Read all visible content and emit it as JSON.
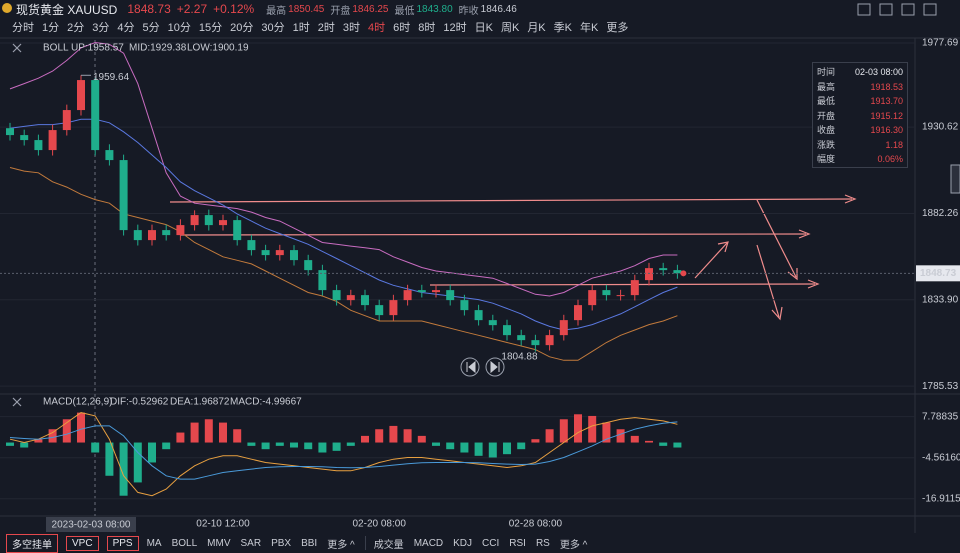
{
  "header": {
    "title": "现货黄金 XAUUSD",
    "price": "1848.73",
    "change": "+2.27",
    "change_pct": "+0.12%",
    "stats": [
      {
        "label": "最高",
        "value": "1850.45"
      },
      {
        "label": "开盘",
        "value": "1846.25"
      },
      {
        "label": "最低",
        "value": "1843.80"
      },
      {
        "label": "昨收",
        "value": "1846.46"
      }
    ]
  },
  "intervals": [
    {
      "label": "分时"
    },
    {
      "label": "1分"
    },
    {
      "label": "2分"
    },
    {
      "label": "3分"
    },
    {
      "label": "4分"
    },
    {
      "label": "5分"
    },
    {
      "label": "10分"
    },
    {
      "label": "15分"
    },
    {
      "label": "20分"
    },
    {
      "label": "30分"
    },
    {
      "label": "1时"
    },
    {
      "label": "2时"
    },
    {
      "label": "3时"
    },
    {
      "label": "4时",
      "active": true
    },
    {
      "label": "6时"
    },
    {
      "label": "8时"
    },
    {
      "label": "12时"
    },
    {
      "label": "日K"
    },
    {
      "label": "周K"
    },
    {
      "label": "月K"
    },
    {
      "label": "季K"
    },
    {
      "label": "年K"
    },
    {
      "label": "更多"
    }
  ],
  "tooltip": [
    [
      "时间",
      "02-03 08:00"
    ],
    [
      "最高",
      "1918.53"
    ],
    [
      "最低",
      "1913.70"
    ],
    [
      "开盘",
      "1915.12"
    ],
    [
      "收盘",
      "1916.30"
    ],
    [
      "涨跌",
      "1.18"
    ],
    [
      "幅度",
      "0.06%"
    ]
  ],
  "crosshair_label": "2023-02-03 08:00",
  "toolbar": {
    "buttons": [
      "多空挂单",
      "VPC",
      "PPS"
    ],
    "main_indicators": [
      "MA",
      "BOLL",
      "MMV",
      "SAR",
      "PBX",
      "BBI",
      "更多 ^"
    ],
    "sub_indicators": [
      "成交量",
      "MACD",
      "KDJ",
      "CCI",
      "RSI",
      "RS",
      "更多 ^"
    ]
  },
  "chart_data": [
    {
      "type": "candlestick",
      "title": "BOLL",
      "up_color": "#e5484d",
      "down_color": "#1fae8c",
      "categories": [
        null,
        null,
        null,
        null,
        null,
        null,
        null,
        null,
        null,
        null,
        null,
        null,
        null,
        null,
        null,
        "02-10 12:00",
        null,
        null,
        null,
        null,
        null,
        null,
        null,
        null,
        null,
        null,
        "02-20 08:00",
        null,
        null,
        null,
        null,
        null,
        null,
        null,
        null,
        null,
        null,
        "02-28 08:00",
        null,
        null,
        null,
        null,
        null,
        null,
        null,
        null,
        null,
        null
      ],
      "open": [
        1930.0,
        1926.15,
        1923.35,
        1917.75,
        1928.95,
        1940.16,
        1956.96,
        1917.75,
        1912.15,
        1872.93,
        1867.33,
        1872.93,
        1870.13,
        1875.73,
        1881.34,
        1875.73,
        1878.53,
        1867.33,
        1861.73,
        1858.93,
        1861.73,
        1856.13,
        1850.52,
        1839.32,
        1833.72,
        1836.52,
        1830.92,
        1825.32,
        1833.72,
        1839.32,
        1838.2,
        1839.32,
        1833.72,
        1828.12,
        1822.51,
        1819.71,
        1814.11,
        1811.31,
        1808.51,
        1814.11,
        1822.51,
        1830.92,
        1839.32,
        1836.52,
        1836.52,
        1844.92,
        1851.64,
        1850.52
      ],
      "high": [
        1933.0,
        1929.2,
        1926.4,
        1932.0,
        1943.2,
        1959.64,
        1958.0,
        1921.0,
        1915.2,
        1876.0,
        1876.0,
        1876.0,
        1879.0,
        1884.0,
        1884.4,
        1881.5,
        1881.0,
        1870.3,
        1864.7,
        1864.7,
        1864.5,
        1859.1,
        1853.5,
        1842.3,
        1839.5,
        1839.5,
        1833.9,
        1836.7,
        1842.3,
        1842.3,
        1842.3,
        1842.3,
        1836.7,
        1831.1,
        1825.5,
        1822.7,
        1817.1,
        1814.3,
        1817.1,
        1825.5,
        1833.9,
        1842.3,
        1842.3,
        1839.5,
        1847.9,
        1854.6,
        1854.6,
        1853.5
      ],
      "low": [
        1923.1,
        1920.3,
        1914.7,
        1914.7,
        1925.9,
        1937.1,
        1914.7,
        1909.1,
        1869.9,
        1864.3,
        1864.3,
        1867.1,
        1867.1,
        1872.7,
        1872.7,
        1872.7,
        1864.3,
        1858.7,
        1855.9,
        1855.9,
        1853.1,
        1847.5,
        1836.3,
        1830.7,
        1830.7,
        1827.9,
        1822.3,
        1822.3,
        1830.7,
        1835.2,
        1835.2,
        1830.7,
        1825.1,
        1819.5,
        1816.7,
        1811.1,
        1808.3,
        1804.88,
        1805.5,
        1811.1,
        1819.5,
        1827.9,
        1833.5,
        1833.5,
        1833.5,
        1841.9,
        1847.5,
        1845.7
      ],
      "close": [
        1926.15,
        1923.35,
        1917.75,
        1928.95,
        1940.16,
        1956.96,
        1917.75,
        1912.15,
        1872.93,
        1867.33,
        1872.93,
        1870.13,
        1875.73,
        1881.34,
        1875.73,
        1878.53,
        1867.33,
        1861.73,
        1858.93,
        1861.73,
        1856.13,
        1850.52,
        1839.32,
        1833.72,
        1836.52,
        1830.92,
        1825.32,
        1833.72,
        1839.32,
        1838.2,
        1839.32,
        1833.72,
        1828.12,
        1822.51,
        1819.71,
        1814.11,
        1811.31,
        1808.51,
        1814.11,
        1822.51,
        1830.92,
        1839.32,
        1836.52,
        1836.52,
        1844.92,
        1851.64,
        1850.52,
        1848.73
      ],
      "series": [
        {
          "name": "UP:1958.57",
          "color": "#c86cc0",
          "values": [
            1952,
            1955,
            1958,
            1962,
            1968,
            1975,
            1978,
            1977,
            1972,
            1955,
            1930,
            1905,
            1892,
            1888,
            1887,
            1886,
            1885,
            1883,
            1880,
            1878,
            1874,
            1870,
            1866,
            1865,
            1864,
            1863,
            1862,
            1858,
            1855,
            1852,
            1850,
            1849,
            1848,
            1847,
            1846,
            1843,
            1840,
            1837,
            1836,
            1838,
            1842,
            1846,
            1848,
            1850,
            1853,
            1857,
            1859,
            1859
          ]
        },
        {
          "name": "MID:1929.38",
          "color": "#5a78e0",
          "values": [
            1930,
            1931,
            1932,
            1932,
            1933,
            1935,
            1935,
            1933,
            1928,
            1922,
            1915,
            1908,
            1900,
            1895,
            1891,
            1887,
            1882,
            1878,
            1874,
            1871,
            1868,
            1865,
            1861,
            1857,
            1853,
            1849,
            1845,
            1842,
            1840,
            1838,
            1837,
            1836,
            1835,
            1834,
            1832,
            1829,
            1826,
            1822,
            1819,
            1817,
            1818,
            1820,
            1823,
            1826,
            1830,
            1834,
            1838,
            1841
          ]
        },
        {
          "name": "LOW:1900.19",
          "color": "#c27a3c",
          "values": [
            1908,
            1906,
            1905,
            1900,
            1897,
            1893,
            1890,
            1888,
            1882,
            1880,
            1878,
            1876,
            1872,
            1866,
            1862,
            1858,
            1856,
            1854,
            1850,
            1846,
            1842,
            1838,
            1836,
            1833,
            1828,
            1825,
            1822,
            1822,
            1822,
            1822,
            1820,
            1818,
            1816,
            1814,
            1812,
            1810,
            1808,
            1806,
            1802,
            1800,
            1800,
            1805,
            1810,
            1814,
            1817,
            1820,
            1822,
            1825
          ]
        }
      ],
      "ylim": [
        1781.7,
        1979.4
      ],
      "yticks": [
        1977.69,
        1930.62,
        1882.26,
        {
          "value": 1833.9,
          "label": "1833.90"
        },
        1785.53
      ],
      "max_marker": 1959.64,
      "min_marker": 1804.88
    },
    {
      "type": "macd",
      "title": "MACD(12,26,9)",
      "ylim": [
        -21.5,
        14.0
      ],
      "yticks": [
        7.78835,
        {
          "value": -4.5616,
          "label": "-4.56160"
        },
        -16.91154
      ],
      "histogram": {
        "name": "MACD:-4.99667",
        "color": "#b18ad8",
        "up_color": "#e5484d",
        "down_color": "#1fae8c",
        "values": [
          -1,
          -1.5,
          1,
          4,
          7,
          9,
          -3,
          -10,
          -16,
          -12,
          -6,
          -2,
          3,
          6,
          7,
          6,
          4,
          -1,
          -2,
          -1,
          -1.5,
          -2,
          -3,
          -2.5,
          -1,
          2,
          4,
          5,
          4,
          2,
          -1,
          -2,
          -3,
          -4,
          -4.5,
          -3.5,
          -2,
          1,
          4,
          7,
          8.5,
          8,
          6,
          4,
          2,
          0.5,
          -1,
          -1.5
        ]
      },
      "series": [
        {
          "name": "DIF:-0.52962",
          "color": "#e8a040",
          "values": [
            1,
            0,
            1,
            3,
            6,
            9,
            8,
            1,
            -10,
            -15,
            -16,
            -14,
            -10,
            -7,
            -5,
            -4,
            -4,
            -5,
            -6,
            -6.5,
            -7,
            -7.5,
            -8,
            -8.5,
            -8.5,
            -7.5,
            -6,
            -5,
            -4.5,
            -4.5,
            -5,
            -5.5,
            -6,
            -6.5,
            -7,
            -7.5,
            -7,
            -6,
            -3,
            0,
            3,
            5,
            6,
            7,
            7.5,
            7,
            6.5,
            5.5
          ]
        },
        {
          "name": "DEA:1.96872",
          "color": "#4a9ad9",
          "values": [
            1.5,
            1.2,
            1,
            1.5,
            2.5,
            4,
            5,
            5,
            2,
            -3,
            -7,
            -10,
            -11,
            -11,
            -10,
            -9,
            -8.5,
            -8,
            -7.5,
            -7.3,
            -7.2,
            -7.2,
            -7.3,
            -7.5,
            -7.6,
            -7.5,
            -7.2,
            -6.8,
            -6.4,
            -6.1,
            -6,
            -6,
            -6,
            -6.1,
            -6.3,
            -6.5,
            -6.6,
            -6.5,
            -5.7,
            -4.5,
            -2.8,
            -1,
            1,
            2.5,
            4,
            5,
            5.8,
            6.2
          ]
        }
      ]
    }
  ]
}
